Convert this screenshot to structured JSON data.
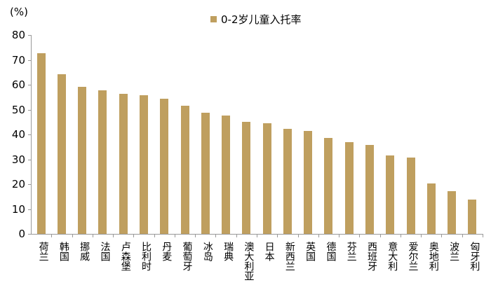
{
  "chart_data": {
    "type": "bar",
    "title": "",
    "ylabel": "(%)",
    "xlabel": "",
    "ylim": [
      0,
      80
    ],
    "yticks": [
      0,
      10,
      20,
      30,
      40,
      50,
      60,
      70,
      80
    ],
    "legend": [
      "0-2岁儿童入托率"
    ],
    "legend_position": "top-center",
    "grid": false,
    "bar_color": "#BF9F5F",
    "categories": [
      "荷兰",
      "韩国",
      "挪威",
      "法国",
      "卢森堡",
      "比利时",
      "丹麦",
      "葡萄牙",
      "冰岛",
      "瑞典",
      "澳大利亚",
      "日本",
      "新西兰",
      "英国",
      "德国",
      "芬兰",
      "西班牙",
      "意大利",
      "爱尔兰",
      "奥地利",
      "波兰",
      "匈牙利"
    ],
    "series": [
      {
        "name": "0-2岁儿童入托率",
        "values": [
          72.7,
          64.2,
          59.2,
          57.7,
          56.3,
          55.8,
          54.4,
          51.5,
          48.7,
          47.6,
          45.1,
          44.5,
          42.3,
          41.4,
          38.6,
          36.9,
          35.8,
          31.5,
          30.7,
          20.3,
          17.2,
          13.8
        ]
      }
    ]
  }
}
